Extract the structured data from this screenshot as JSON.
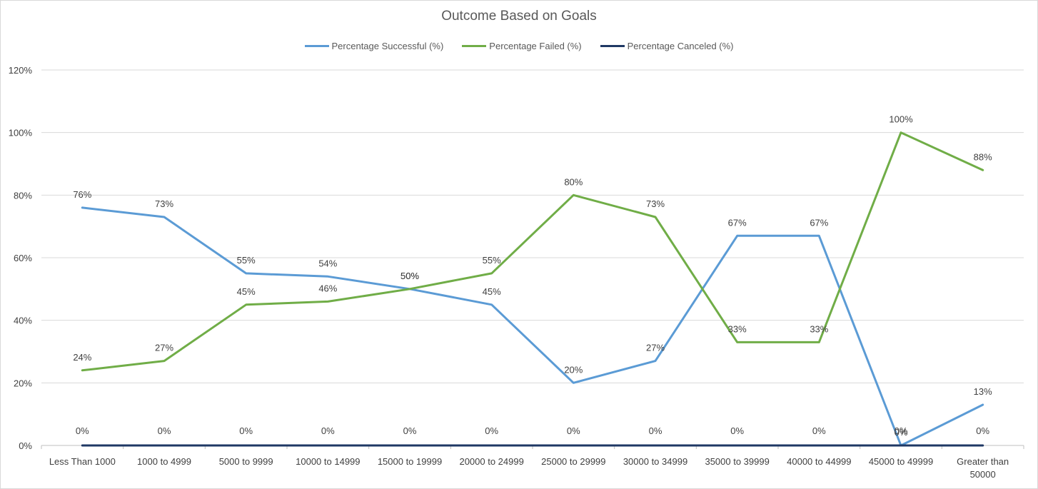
{
  "chart_data": {
    "type": "line",
    "title": "Outcome Based on Goals",
    "categories": [
      "Less Than 1000",
      "1000 to 4999",
      "5000 to 9999",
      "10000 to 14999",
      "15000 to 19999",
      "20000 to 24999",
      "25000 to 29999",
      "30000 to 34999",
      "35000 to 39999",
      "40000 to 44999",
      "45000 to 49999",
      "Greater than 50000"
    ],
    "series": [
      {
        "name": "Percentage Successful (%)",
        "color": "#5b9bd5",
        "values": [
          76,
          73,
          55,
          54,
          50,
          45,
          20,
          27,
          67,
          67,
          0,
          13
        ]
      },
      {
        "name": "Percentage Failed (%)",
        "color": "#70ad47",
        "values": [
          24,
          27,
          45,
          46,
          50,
          55,
          80,
          73,
          33,
          33,
          100,
          88
        ]
      },
      {
        "name": "Percentage Canceled (%)",
        "color": "#1f3864",
        "values": [
          0,
          0,
          0,
          0,
          0,
          0,
          0,
          0,
          0,
          0,
          0,
          0
        ]
      }
    ],
    "ylim": [
      0,
      120
    ],
    "yticks": [
      "0%",
      "20%",
      "40%",
      "60%",
      "80%",
      "100%",
      "120%"
    ],
    "grid": true,
    "legend_position": "top"
  }
}
